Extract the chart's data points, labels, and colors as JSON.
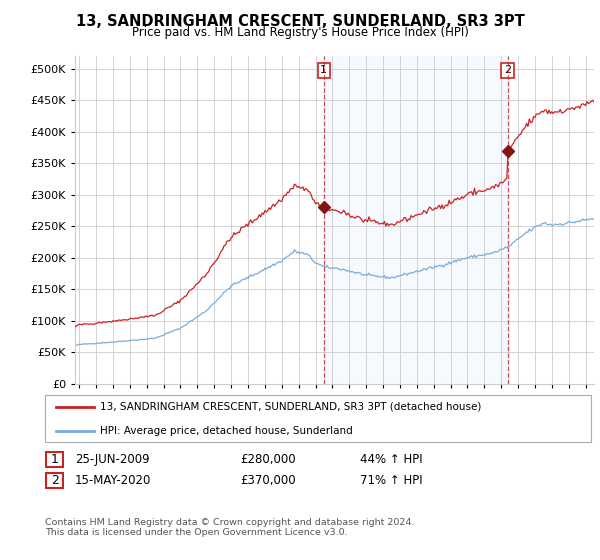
{
  "title": "13, SANDRINGHAM CRESCENT, SUNDERLAND, SR3 3PT",
  "subtitle": "Price paid vs. HM Land Registry's House Price Index (HPI)",
  "footer": "Contains HM Land Registry data © Crown copyright and database right 2024.\nThis data is licensed under the Open Government Licence v3.0.",
  "legend_line1": "13, SANDRINGHAM CRESCENT, SUNDERLAND, SR3 3PT (detached house)",
  "legend_line2": "HPI: Average price, detached house, Sunderland",
  "sale1_date_label": "25-JUN-2009",
  "sale1_price_label": "£280,000",
  "sale1_hpi_label": "44% ↑ HPI",
  "sale2_date_label": "15-MAY-2020",
  "sale2_price_label": "£370,000",
  "sale2_hpi_label": "71% ↑ HPI",
  "sale1_date_num": 2009.49,
  "sale2_date_num": 2020.38,
  "sale1_price_val": 280000,
  "sale2_price_val": 370000,
  "hpi_color": "#7aaddb",
  "price_color": "#cc2222",
  "shade_color": "#ddeeff",
  "vline_color": "#cc2222",
  "marker_color": "#881111",
  "ylim": [
    0,
    520000
  ],
  "xlim_start": 1994.75,
  "xlim_end": 2025.5,
  "yticks": [
    0,
    50000,
    100000,
    150000,
    200000,
    250000,
    300000,
    350000,
    400000,
    450000,
    500000
  ],
  "xticks": [
    1995,
    1996,
    1997,
    1998,
    1999,
    2000,
    2001,
    2002,
    2003,
    2004,
    2005,
    2006,
    2007,
    2008,
    2009,
    2010,
    2011,
    2012,
    2013,
    2014,
    2015,
    2016,
    2017,
    2018,
    2019,
    2020,
    2021,
    2022,
    2023,
    2024,
    2025
  ],
  "background_color": "#ffffff",
  "grid_color": "#cccccc"
}
